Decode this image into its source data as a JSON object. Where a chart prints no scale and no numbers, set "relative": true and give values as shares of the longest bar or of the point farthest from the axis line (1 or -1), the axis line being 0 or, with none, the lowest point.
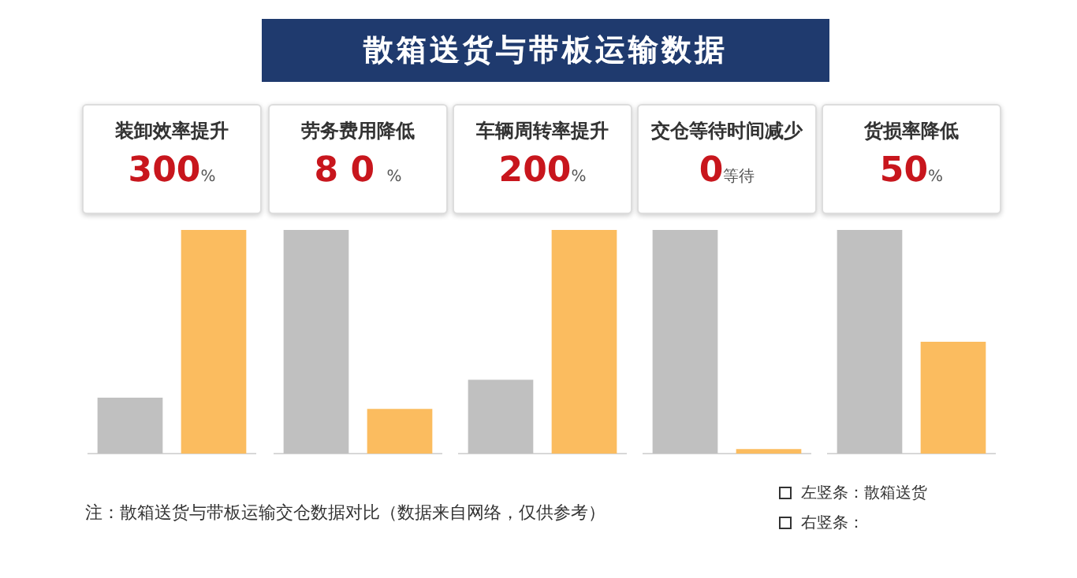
{
  "chart_data": [
    {
      "type": "other",
      "title": "散箱送货与带板运输数据",
      "annotations": [
        "注：散箱送货与带板运输交仓数据对比（数据来自网络，仅供参考）",
        "左竖条：散箱送货",
        "右竖条："
      ]
    },
    {
      "type": "bar",
      "title": "装卸效率提升",
      "subtitle": "300%",
      "relative": true,
      "categories": [
        null,
        null
      ],
      "values": [
        0.25,
        1
      ],
      "colors": [
        "#c0c0c0",
        "#fbbc5f"
      ]
    },
    {
      "type": "bar",
      "title": "劳务费用降低",
      "subtitle": "8 0 %",
      "relative": true,
      "categories": [
        null,
        null
      ],
      "values": [
        1,
        0.2
      ],
      "colors": [
        "#c0c0c0",
        "#fbbc5f"
      ]
    },
    {
      "type": "bar",
      "title": "车辆周转率提升",
      "subtitle": "200%",
      "relative": true,
      "categories": [
        null,
        null
      ],
      "values": [
        0.33,
        1
      ],
      "colors": [
        "#c0c0c0",
        "#fbbc5f"
      ]
    },
    {
      "type": "bar",
      "title": "交仓等待时间减少",
      "subtitle": "0等待",
      "relative": true,
      "categories": [
        null,
        null
      ],
      "values": [
        1,
        0.02
      ],
      "colors": [
        "#c0c0c0",
        "#fbbc5f"
      ]
    },
    {
      "type": "bar",
      "title": "货损率降低",
      "subtitle": "50%",
      "relative": true,
      "categories": [
        null,
        null
      ],
      "values": [
        1,
        0.5
      ],
      "colors": [
        "#c0c0c0",
        "#fbbc5f"
      ]
    }
  ]
}
